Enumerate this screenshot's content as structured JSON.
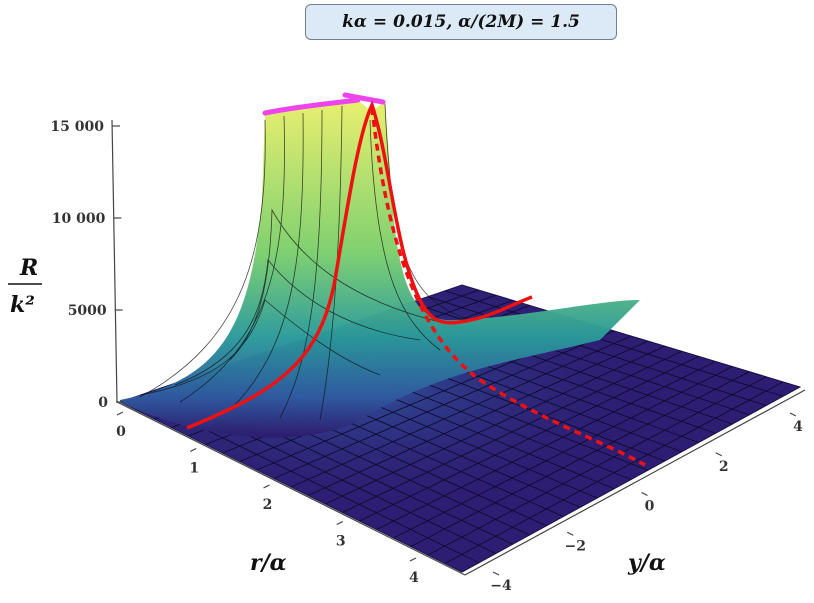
{
  "title": "kα = 0.015,   α/(2M) = 1.5",
  "chart_data": {
    "type": "surface3d",
    "title": "kα = 0.015,   α/(2M) = 1.5",
    "zlabel": {
      "numerator": "R",
      "denominator": "k²"
    },
    "xlabel": "r/α",
    "ylabel": "y/α",
    "z_ticks": [
      "0",
      "5000",
      "10 000",
      "15 000"
    ],
    "x_ticks": [
      "0",
      "1",
      "2",
      "3",
      "4"
    ],
    "y_ticks": [
      "4",
      "2",
      "0",
      "−2",
      "−4"
    ],
    "xlim": [
      0,
      4.5
    ],
    "ylim": [
      -4,
      4.5
    ],
    "zlim": [
      0,
      15000
    ],
    "colormap": [
      "#2e1a6e",
      "#2f5aa0",
      "#2a9a9a",
      "#7ccf6c",
      "#e8ef6a"
    ],
    "curves": [
      {
        "style": "solid",
        "color": "#ee1111",
        "description_points": [
          [
            1.0,
            4.0,
            200
          ],
          [
            0.55,
            0.0,
            15000
          ],
          [
            1.0,
            -3.5,
            1800
          ]
        ]
      },
      {
        "style": "dashed",
        "color": "#ee1111",
        "description_points": [
          [
            0.6,
            0.2,
            15000
          ],
          [
            2.5,
            0.0,
            100
          ]
        ]
      },
      {
        "style": "solid",
        "color": "#ee44ee",
        "description_points": [
          [
            0.5,
            4.0,
            15000
          ],
          [
            0.5,
            0.0,
            15000
          ]
        ]
      }
    ]
  }
}
